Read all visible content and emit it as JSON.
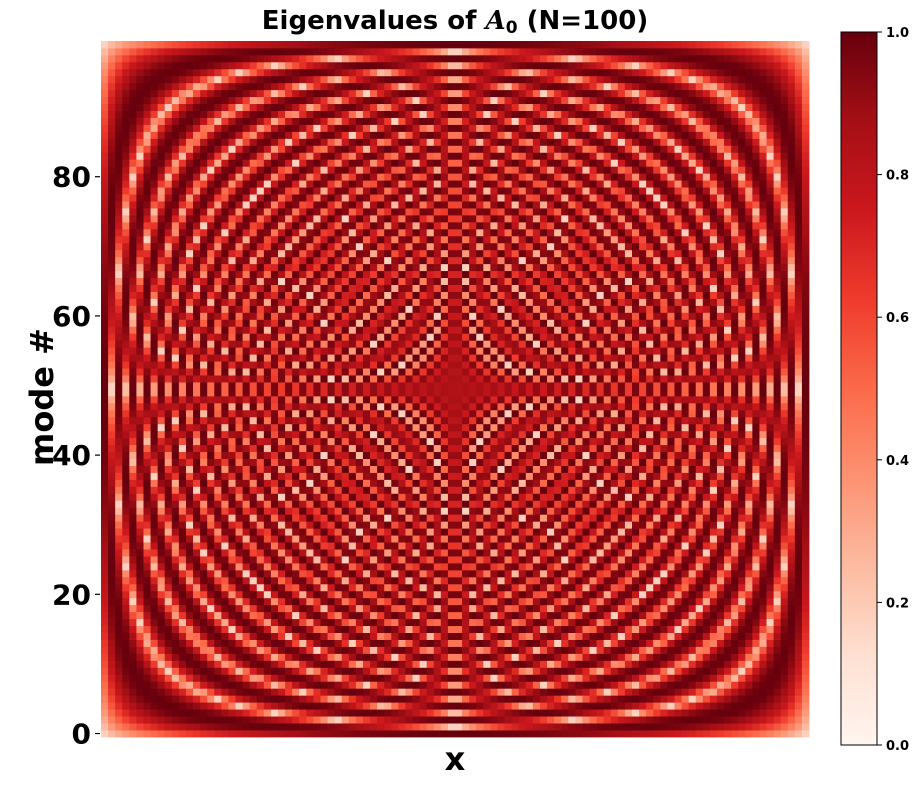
{
  "chart_data": {
    "type": "heatmap",
    "title_prefix": "Eigenvalues of ",
    "title_symbol": "A",
    "title_subscript": "0",
    "title_suffix": " (N=100)",
    "xlabel": "x",
    "ylabel": "mode #",
    "grid_size": 100,
    "x_range": [
      0,
      99
    ],
    "y_range": [
      0,
      99
    ],
    "y_ticks": [
      0,
      20,
      40,
      60,
      80
    ],
    "colorbar_ticks": [
      "0.0",
      "0.2",
      "0.4",
      "0.6",
      "0.8",
      "1.0"
    ],
    "colorbar_range": [
      0,
      1
    ],
    "value_description": "normalized sine-mode amplitude |sin(pi*(m+1)*(x+1)/(N+1))|^(1/2)",
    "colormap": "Reds",
    "colormap_stops": [
      "#fff5f0",
      "#fee0d2",
      "#fcbba1",
      "#fc9272",
      "#fb6a4a",
      "#ef3b2c",
      "#cb181d",
      "#a50f15",
      "#67000d"
    ]
  }
}
